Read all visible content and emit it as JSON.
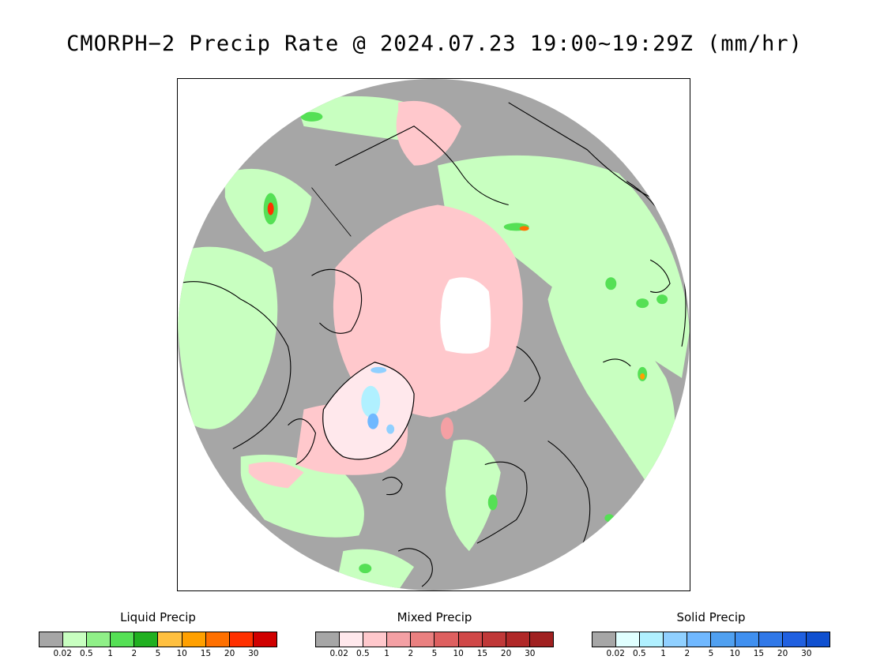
{
  "title": "CMORPH−2 Precip Rate @ 2024.07.23 19:00~19:29Z (mm/hr)",
  "colors": {
    "no_data": "#ffffff",
    "background_gray": "#a6a6a6",
    "coastline": "#000000"
  },
  "legends": [
    {
      "id": "liquid",
      "title": "Liquid Precip",
      "colors": [
        "#a6a6a6",
        "#c8ffc0",
        "#90f088",
        "#55e055",
        "#20b020",
        "#ffc040",
        "#ffa000",
        "#ff7000",
        "#ff3000",
        "#d00000"
      ],
      "ticks": [
        "0.02",
        "0.5",
        "1",
        "2",
        "5",
        "10",
        "15",
        "20",
        "30"
      ]
    },
    {
      "id": "mixed",
      "title": "Mixed Precip",
      "colors": [
        "#a6a6a6",
        "#ffe8ec",
        "#ffc8cc",
        "#f4a0a4",
        "#ea8080",
        "#de6060",
        "#d04848",
        "#c03838",
        "#b02828",
        "#a02020"
      ],
      "ticks": [
        "0.02",
        "0.5",
        "1",
        "2",
        "5",
        "10",
        "15",
        "20",
        "30"
      ]
    },
    {
      "id": "solid",
      "title": "Solid Precip",
      "colors": [
        "#a6a6a6",
        "#e0ffff",
        "#b0f0ff",
        "#90d0ff",
        "#70b8ff",
        "#50a0f0",
        "#4090f0",
        "#3078e8",
        "#2060e0",
        "#1050d0"
      ],
      "ticks": [
        "0.02",
        "0.5",
        "1",
        "2",
        "5",
        "10",
        "15",
        "20",
        "30"
      ]
    }
  ]
}
